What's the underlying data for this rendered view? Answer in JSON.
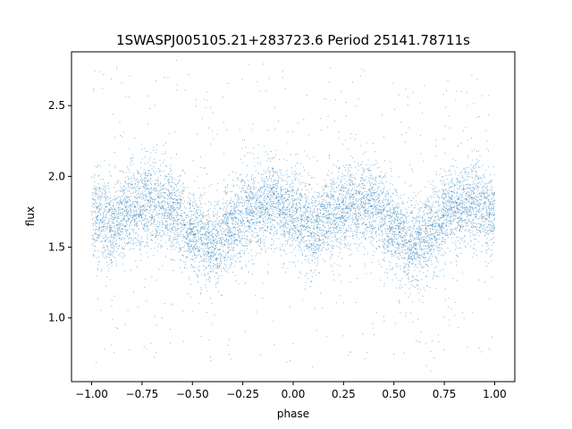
{
  "chart_data": {
    "type": "scatter",
    "title": "1SWASPJ005105.21+283723.6 Period 25141.78711s",
    "xlabel": "phase",
    "ylabel": "flux",
    "xlim": [
      -1.1,
      1.1
    ],
    "ylim": [
      0.55,
      2.88
    ],
    "x_ticks": [
      -1.0,
      -0.75,
      -0.5,
      -0.25,
      0.0,
      0.25,
      0.5,
      0.75,
      1.0
    ],
    "x_tick_labels": [
      "−1.00",
      "−0.75",
      "−0.50",
      "−0.25",
      "0.00",
      "0.25",
      "0.50",
      "0.75",
      "1.00"
    ],
    "y_ticks": [
      1.0,
      1.5,
      2.0,
      2.5
    ],
    "y_tick_labels": [
      "1.0",
      "1.5",
      "2.0",
      "2.5"
    ],
    "grid": false,
    "point_color": "#1f77b4",
    "x_range": [
      -1.0,
      1.0
    ],
    "light_curve": {
      "phase": [
        -1.0,
        -0.9,
        -0.8,
        -0.7,
        -0.6,
        -0.5,
        -0.4,
        -0.3,
        -0.2,
        -0.1,
        0.0,
        0.1,
        0.2,
        0.3,
        0.4,
        0.5,
        0.6,
        0.7,
        0.8,
        0.9,
        1.0
      ],
      "flux": [
        1.72,
        1.68,
        1.78,
        1.82,
        1.78,
        1.62,
        1.5,
        1.65,
        1.78,
        1.82,
        1.72,
        1.62,
        1.74,
        1.82,
        1.8,
        1.62,
        1.5,
        1.64,
        1.8,
        1.82,
        1.73
      ]
    },
    "scatter_sigma": 0.15
  }
}
